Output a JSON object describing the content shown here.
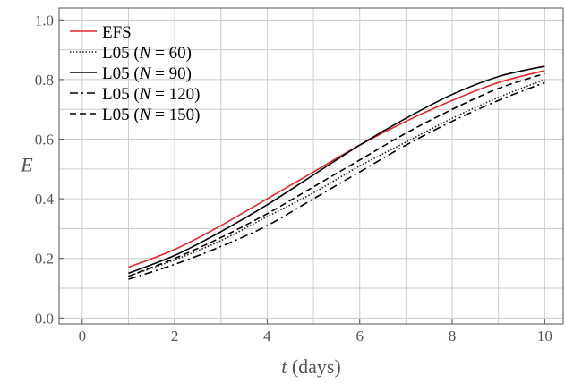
{
  "chart_data": {
    "type": "line",
    "x_ticks": [
      0,
      2,
      4,
      6,
      8,
      10
    ],
    "y_ticks": [
      "0.0",
      "0.2",
      "0.4",
      "0.6",
      "0.8",
      "1.0"
    ],
    "xlim": [
      -0.5,
      10.4
    ],
    "ylim": [
      -0.02,
      1.04
    ],
    "x_minor_step": 1,
    "y_minor_step": 0.1,
    "grid": true,
    "legend_position": "top-left",
    "xlabel": {
      "italic": "t",
      "rest": " (days)"
    },
    "ylabel": "E",
    "series": [
      {
        "name": "EFS",
        "legend": {
          "pre": "EFS",
          "italic": "",
          "post": ""
        },
        "color": "#e8242a",
        "dash": "",
        "x": [
          1,
          2,
          3,
          4,
          5,
          6,
          7,
          8,
          9,
          10
        ],
        "y": [
          0.17,
          0.23,
          0.31,
          0.4,
          0.49,
          0.58,
          0.66,
          0.73,
          0.79,
          0.83
        ]
      },
      {
        "name": "L05 (N = 60)",
        "legend": {
          "pre": "L05 (",
          "italic": "N",
          "post": " = 60)"
        },
        "color": "#222222",
        "dash": "1.5,2",
        "x": [
          1,
          2,
          3,
          4,
          5,
          6,
          7,
          8,
          9,
          10
        ],
        "y": [
          0.14,
          0.195,
          0.26,
          0.34,
          0.42,
          0.51,
          0.59,
          0.67,
          0.74,
          0.8
        ]
      },
      {
        "name": "L05 (N = 90)",
        "legend": {
          "pre": "L05 (",
          "italic": "N",
          "post": " = 90)"
        },
        "color": "#000000",
        "dash": "",
        "x": [
          1,
          2,
          3,
          4,
          5,
          6,
          7,
          8,
          9,
          10
        ],
        "y": [
          0.15,
          0.21,
          0.29,
          0.38,
          0.48,
          0.58,
          0.67,
          0.75,
          0.81,
          0.845
        ]
      },
      {
        "name": "L05 (N = 120)",
        "legend": {
          "pre": "L05 (",
          "italic": "N",
          "post": " = 120)"
        },
        "color": "#000000",
        "dash": "9,4,2,4",
        "x": [
          1,
          2,
          3,
          4,
          5,
          6,
          7,
          8,
          9,
          10
        ],
        "y": [
          0.13,
          0.18,
          0.24,
          0.31,
          0.4,
          0.49,
          0.58,
          0.66,
          0.73,
          0.79
        ]
      },
      {
        "name": "L05 (N = 150)",
        "legend": {
          "pre": "L05 (",
          "italic": "N",
          "post": " = 150)"
        },
        "color": "#000000",
        "dash": "7,4",
        "x": [
          1,
          2,
          3,
          4,
          5,
          6,
          7,
          8,
          9,
          10
        ],
        "y": [
          0.14,
          0.2,
          0.27,
          0.35,
          0.44,
          0.53,
          0.62,
          0.7,
          0.77,
          0.82
        ]
      }
    ]
  }
}
